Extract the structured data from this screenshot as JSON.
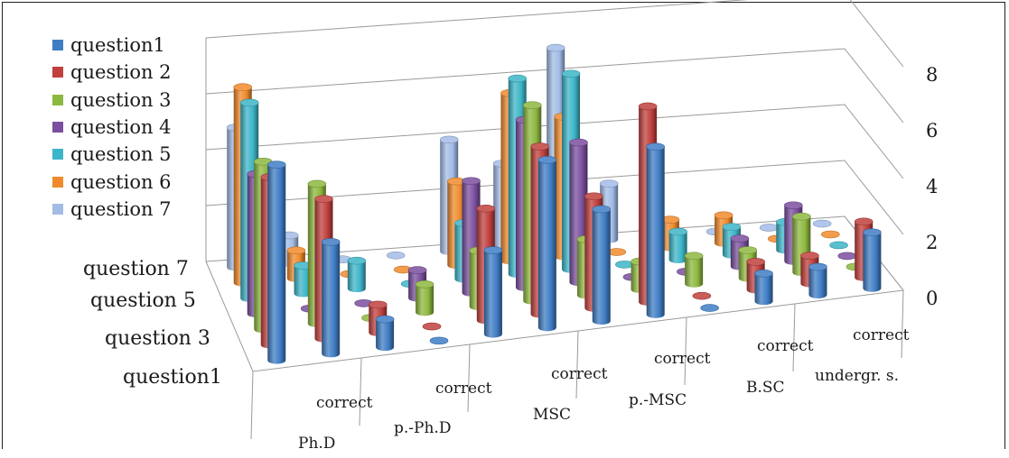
{
  "chart_data": {
    "type": "bar3d",
    "categories": [
      "Ph.D",
      "correct",
      "p.-Ph.D",
      "correct",
      "MSC",
      "correct",
      "p.-MSC",
      "correct",
      "B.SC",
      "correct",
      "undergr. s.",
      "correct"
    ],
    "z_axis": [
      "question1",
      "question 3",
      "question 5",
      "question 7"
    ],
    "ylim": [
      0,
      8
    ],
    "yticks": [
      0,
      2,
      4,
      6,
      8
    ],
    "grid": true,
    "legend_position": "top-left",
    "series": [
      {
        "name": "question1",
        "color": "#3f7dc4",
        "values": [
          7,
          4,
          1,
          0,
          3,
          6,
          4,
          6,
          0,
          1,
          1,
          2
        ]
      },
      {
        "name": "question 2",
        "color": "#c0403d",
        "values": [
          6,
          5,
          1,
          0,
          4,
          6,
          4,
          7,
          0,
          1,
          1,
          2
        ]
      },
      {
        "name": "question 3",
        "color": "#8db83f",
        "values": [
          6,
          5,
          0,
          1,
          2,
          7,
          2,
          1,
          1,
          1,
          2,
          0
        ]
      },
      {
        "name": "question 4",
        "color": "#7a4f9e",
        "values": [
          5,
          0,
          0,
          1,
          4,
          6,
          5,
          0,
          0,
          1,
          2,
          0
        ]
      },
      {
        "name": "question 5",
        "color": "#3db5c8",
        "values": [
          7,
          1,
          1,
          0,
          2,
          7,
          7,
          0,
          1,
          1,
          1,
          0
        ]
      },
      {
        "name": "question 6",
        "color": "#f08a2c",
        "values": [
          7,
          1,
          0,
          0,
          3,
          6,
          5,
          0,
          1,
          1,
          0,
          0
        ]
      },
      {
        "name": "question 7",
        "color": "#a3bce6",
        "values": [
          5,
          1,
          0,
          0,
          4,
          3,
          7,
          2,
          0,
          0,
          0,
          0
        ]
      }
    ]
  }
}
